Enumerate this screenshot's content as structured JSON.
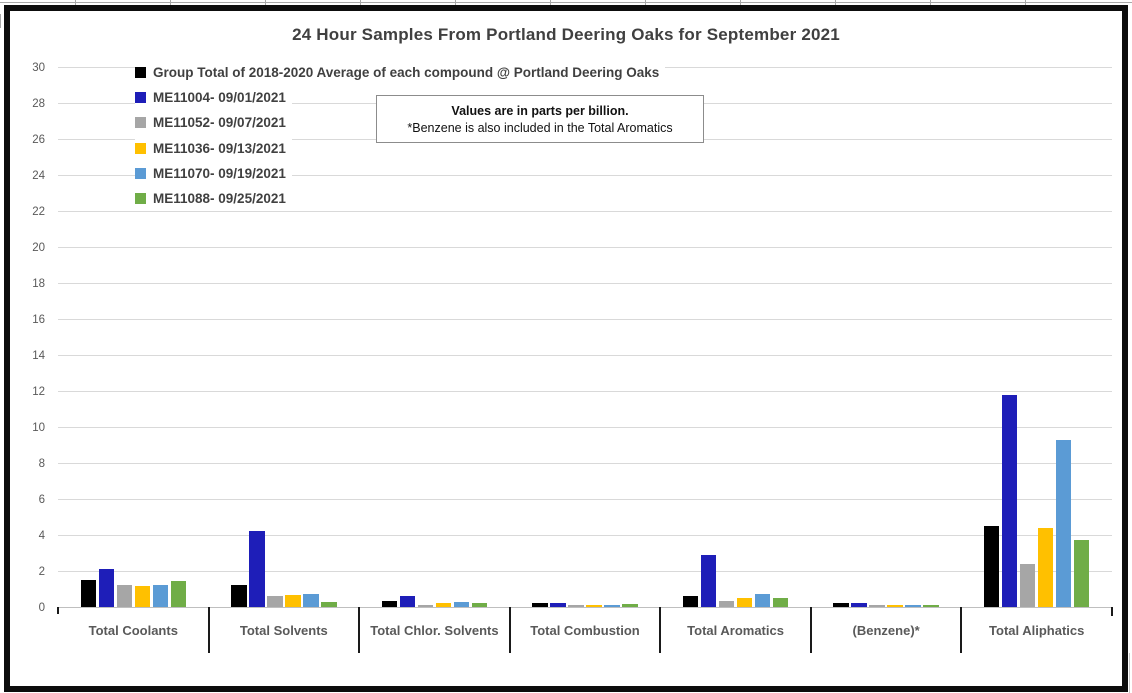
{
  "title": "24 Hour Samples From Portland Deering Oaks for September 2021",
  "annotation": {
    "line1": "Values are in parts per billion.",
    "line2": "*Benzene is also included in the Total Aromatics"
  },
  "chart_data": {
    "type": "bar",
    "title": "24 Hour Samples From Portland Deering Oaks for September 2021",
    "categories": [
      "Total Coolants",
      "Total Solvents",
      "Total Chlor. Solvents",
      "Total Combustion",
      "Total Aromatics",
      "(Benzene)*",
      "Total Aliphatics"
    ],
    "series": [
      {
        "name": "Group Total of 2018-2020 Average of each compound @ Portland Deering Oaks",
        "color": "#000000",
        "values": [
          1.5,
          1.2,
          0.35,
          0.25,
          0.6,
          0.2,
          4.5
        ]
      },
      {
        "name": "ME11004- 09/01/2021",
        "color": "#1e1eb8",
        "values": [
          2.1,
          4.2,
          0.6,
          0.25,
          2.9,
          0.2,
          11.8
        ]
      },
      {
        "name": "ME11052- 09/07/2021",
        "color": "#a6a6a6",
        "values": [
          1.25,
          0.6,
          0.1,
          0.1,
          0.35,
          0.1,
          2.4
        ]
      },
      {
        "name": "ME11036- 09/13/2021",
        "color": "#ffc000",
        "values": [
          1.15,
          0.65,
          0.2,
          0.1,
          0.5,
          0.1,
          4.4
        ]
      },
      {
        "name": "ME11070- 09/19/2021",
        "color": "#5b9bd5",
        "values": [
          1.2,
          0.7,
          0.3,
          0.1,
          0.7,
          0.1,
          9.3
        ]
      },
      {
        "name": "ME11088- 09/25/2021",
        "color": "#70ad47",
        "values": [
          1.45,
          0.3,
          0.2,
          0.15,
          0.5,
          0.1,
          3.7
        ]
      }
    ],
    "xlabel": "",
    "ylabel": "",
    "ylim": [
      0,
      30
    ],
    "yticks": [
      0,
      2,
      4,
      6,
      8,
      10,
      12,
      14,
      16,
      18,
      20,
      22,
      24,
      26,
      28,
      30
    ],
    "grid": "horizontal",
    "legend_position": "top-left-inside",
    "annotation_line1": "Values are in parts per billion.",
    "annotation_line2": "*Benzene is also included in the Total Aromatics"
  }
}
